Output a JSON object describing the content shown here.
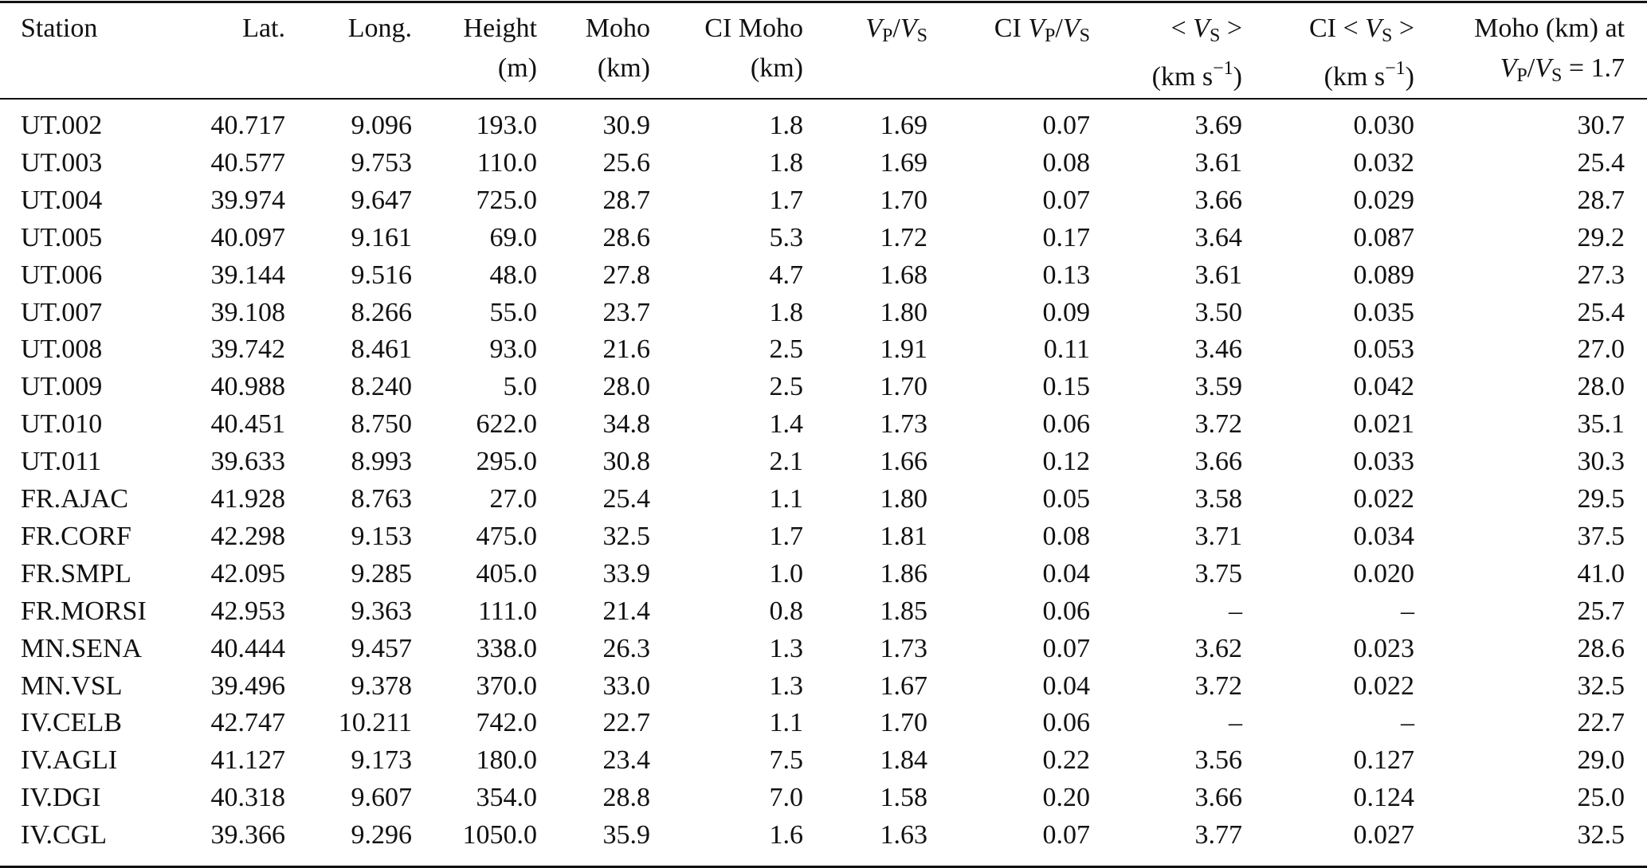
{
  "table": {
    "header": [
      [
        [
          "Station"
        ]
      ],
      [
        [
          "Lat."
        ]
      ],
      [
        [
          "Long."
        ]
      ],
      [
        [
          "Height"
        ],
        [
          "(m)"
        ]
      ],
      [
        [
          "Moho"
        ],
        [
          "(km)"
        ]
      ],
      [
        [
          "CI Moho"
        ],
        [
          "(km)"
        ]
      ],
      [
        [
          {
            "t": "V",
            "s": "i"
          },
          {
            "t": "P",
            "s": "sub"
          },
          "/",
          {
            "t": "V",
            "s": "i"
          },
          {
            "t": "S",
            "s": "sub"
          }
        ]
      ],
      [
        [
          "CI ",
          {
            "t": "V",
            "s": "i"
          },
          {
            "t": "P",
            "s": "sub"
          },
          "/",
          {
            "t": "V",
            "s": "i"
          },
          {
            "t": "S",
            "s": "sub"
          }
        ]
      ],
      [
        [
          "< ",
          {
            "t": "V",
            "s": "i"
          },
          {
            "t": "S",
            "s": "sub"
          },
          " >"
        ],
        [
          "(km s",
          {
            "t": "−1",
            "s": "sup"
          },
          ")"
        ]
      ],
      [
        [
          "CI < ",
          {
            "t": "V",
            "s": "i"
          },
          {
            "t": "S",
            "s": "sub"
          },
          " >"
        ],
        [
          "(km s",
          {
            "t": "−1",
            "s": "sup"
          },
          ")"
        ]
      ],
      [
        [
          "Moho (km) at"
        ],
        [
          {
            "t": "V",
            "s": "i"
          },
          {
            "t": "P",
            "s": "sub"
          },
          "/",
          {
            "t": "V",
            "s": "i"
          },
          {
            "t": "S",
            "s": "sub"
          },
          " = 1.7"
        ]
      ]
    ],
    "rows": [
      [
        "UT.002",
        "40.717",
        "9.096",
        "193.0",
        "30.9",
        "1.8",
        "1.69",
        "0.07",
        "3.69",
        "0.030",
        "30.7"
      ],
      [
        "UT.003",
        "40.577",
        "9.753",
        "110.0",
        "25.6",
        "1.8",
        "1.69",
        "0.08",
        "3.61",
        "0.032",
        "25.4"
      ],
      [
        "UT.004",
        "39.974",
        "9.647",
        "725.0",
        "28.7",
        "1.7",
        "1.70",
        "0.07",
        "3.66",
        "0.029",
        "28.7"
      ],
      [
        "UT.005",
        "40.097",
        "9.161",
        "69.0",
        "28.6",
        "5.3",
        "1.72",
        "0.17",
        "3.64",
        "0.087",
        "29.2"
      ],
      [
        "UT.006",
        "39.144",
        "9.516",
        "48.0",
        "27.8",
        "4.7",
        "1.68",
        "0.13",
        "3.61",
        "0.089",
        "27.3"
      ],
      [
        "UT.007",
        "39.108",
        "8.266",
        "55.0",
        "23.7",
        "1.8",
        "1.80",
        "0.09",
        "3.50",
        "0.035",
        "25.4"
      ],
      [
        "UT.008",
        "39.742",
        "8.461",
        "93.0",
        "21.6",
        "2.5",
        "1.91",
        "0.11",
        "3.46",
        "0.053",
        "27.0"
      ],
      [
        "UT.009",
        "40.988",
        "8.240",
        "5.0",
        "28.0",
        "2.5",
        "1.70",
        "0.15",
        "3.59",
        "0.042",
        "28.0"
      ],
      [
        "UT.010",
        "40.451",
        "8.750",
        "622.0",
        "34.8",
        "1.4",
        "1.73",
        "0.06",
        "3.72",
        "0.021",
        "35.1"
      ],
      [
        "UT.011",
        "39.633",
        "8.993",
        "295.0",
        "30.8",
        "2.1",
        "1.66",
        "0.12",
        "3.66",
        "0.033",
        "30.3"
      ],
      [
        "FR.AJAC",
        "41.928",
        "8.763",
        "27.0",
        "25.4",
        "1.1",
        "1.80",
        "0.05",
        "3.58",
        "0.022",
        "29.5"
      ],
      [
        "FR.CORF",
        "42.298",
        "9.153",
        "475.0",
        "32.5",
        "1.7",
        "1.81",
        "0.08",
        "3.71",
        "0.034",
        "37.5"
      ],
      [
        "FR.SMPL",
        "42.095",
        "9.285",
        "405.0",
        "33.9",
        "1.0",
        "1.86",
        "0.04",
        "3.75",
        "0.020",
        "41.0"
      ],
      [
        "FR.MORSI",
        "42.953",
        "9.363",
        "111.0",
        "21.4",
        "0.8",
        "1.85",
        "0.06",
        "–",
        "–",
        "25.7"
      ],
      [
        "MN.SENA",
        "40.444",
        "9.457",
        "338.0",
        "26.3",
        "1.3",
        "1.73",
        "0.07",
        "3.62",
        "0.023",
        "28.6"
      ],
      [
        "MN.VSL",
        "39.496",
        "9.378",
        "370.0",
        "33.0",
        "1.3",
        "1.67",
        "0.04",
        "3.72",
        "0.022",
        "32.5"
      ],
      [
        "IV.CELB",
        "42.747",
        "10.211",
        "742.0",
        "22.7",
        "1.1",
        "1.70",
        "0.06",
        "–",
        "–",
        "22.7"
      ],
      [
        "IV.AGLI",
        "41.127",
        "9.173",
        "180.0",
        "23.4",
        "7.5",
        "1.84",
        "0.22",
        "3.56",
        "0.127",
        "29.0"
      ],
      [
        "IV.DGI",
        "40.318",
        "9.607",
        "354.0",
        "28.8",
        "7.0",
        "1.58",
        "0.20",
        "3.66",
        "0.124",
        "25.0"
      ],
      [
        "IV.CGL",
        "39.366",
        "9.296",
        "1050.0",
        "35.9",
        "1.6",
        "1.63",
        "0.07",
        "3.77",
        "0.027",
        "32.5"
      ]
    ]
  }
}
